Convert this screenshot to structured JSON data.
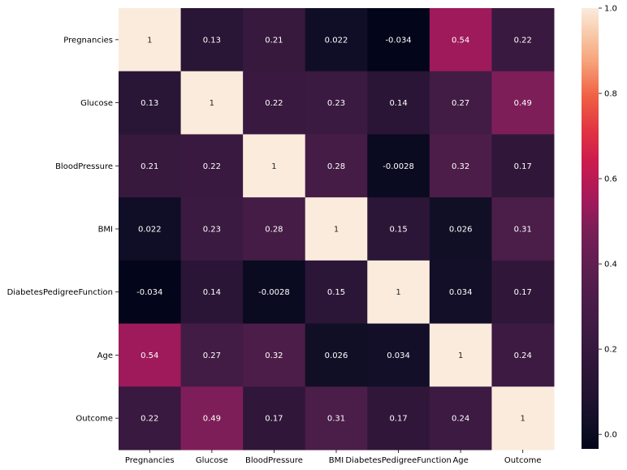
{
  "chart_data": {
    "type": "heatmap",
    "title": "",
    "xlabel": "",
    "ylabel": "",
    "row_labels": [
      "Pregnancies",
      "Glucose",
      "BloodPressure",
      "BMI",
      "DiabetesPedigreeFunction",
      "Age",
      "Outcome"
    ],
    "col_labels": [
      "Pregnancies",
      "Glucose",
      "BloodPressure",
      "BMI",
      "DiabetesPedigreeFunction",
      "Age",
      "Outcome"
    ],
    "values": [
      [
        1,
        0.13,
        0.21,
        0.022,
        -0.034,
        0.54,
        0.22
      ],
      [
        0.13,
        1,
        0.22,
        0.23,
        0.14,
        0.27,
        0.49
      ],
      [
        0.21,
        0.22,
        1,
        0.28,
        -0.0028,
        0.32,
        0.17
      ],
      [
        0.022,
        0.23,
        0.28,
        1,
        0.15,
        0.026,
        0.31
      ],
      [
        -0.034,
        0.14,
        -0.0028,
        0.15,
        1,
        0.034,
        0.17
      ],
      [
        0.54,
        0.27,
        0.32,
        0.026,
        0.034,
        1,
        0.24
      ],
      [
        0.22,
        0.49,
        0.17,
        0.31,
        0.17,
        0.24,
        1
      ]
    ],
    "annotations": [
      [
        "1",
        "0.13",
        "0.21",
        "0.022",
        "-0.034",
        "0.54",
        "0.22"
      ],
      [
        "0.13",
        "1",
        "0.22",
        "0.23",
        "0.14",
        "0.27",
        "0.49"
      ],
      [
        "0.21",
        "0.22",
        "1",
        "0.28",
        "-0.0028",
        "0.32",
        "0.17"
      ],
      [
        "0.022",
        "0.23",
        "0.28",
        "1",
        "0.15",
        "0.026",
        "0.31"
      ],
      [
        "-0.034",
        "0.14",
        "-0.0028",
        "0.15",
        "1",
        "0.034",
        "0.17"
      ],
      [
        "0.54",
        "0.27",
        "0.32",
        "0.026",
        "0.034",
        "1",
        "0.24"
      ],
      [
        "0.22",
        "0.49",
        "0.17",
        "0.31",
        "0.17",
        "0.24",
        "1"
      ]
    ],
    "colorbar": {
      "vmin": -0.034,
      "vmax": 1,
      "ticks": [
        0.0,
        0.2,
        0.4,
        0.6,
        0.8,
        1.0
      ],
      "tick_labels": [
        "0.0",
        "0.2",
        "0.4",
        "0.6",
        "0.8",
        "1.0"
      ]
    },
    "colormap": {
      "name": "rocket",
      "stops": [
        [
          0.0,
          "#03051a"
        ],
        [
          0.05,
          "#0f0e25"
        ],
        [
          0.12,
          "#221331"
        ],
        [
          0.2,
          "#30173a"
        ],
        [
          0.3,
          "#431c46"
        ],
        [
          0.4,
          "#5a1e4f"
        ],
        [
          0.5,
          "#7a1f58"
        ],
        [
          0.56,
          "#a11a5b"
        ],
        [
          0.65,
          "#cb1b4f"
        ],
        [
          0.72,
          "#e13342"
        ],
        [
          0.8,
          "#f06043"
        ],
        [
          0.88,
          "#f6a47b"
        ],
        [
          0.94,
          "#f8c9a8"
        ],
        [
          1.0,
          "#faebdd"
        ]
      ]
    }
  }
}
